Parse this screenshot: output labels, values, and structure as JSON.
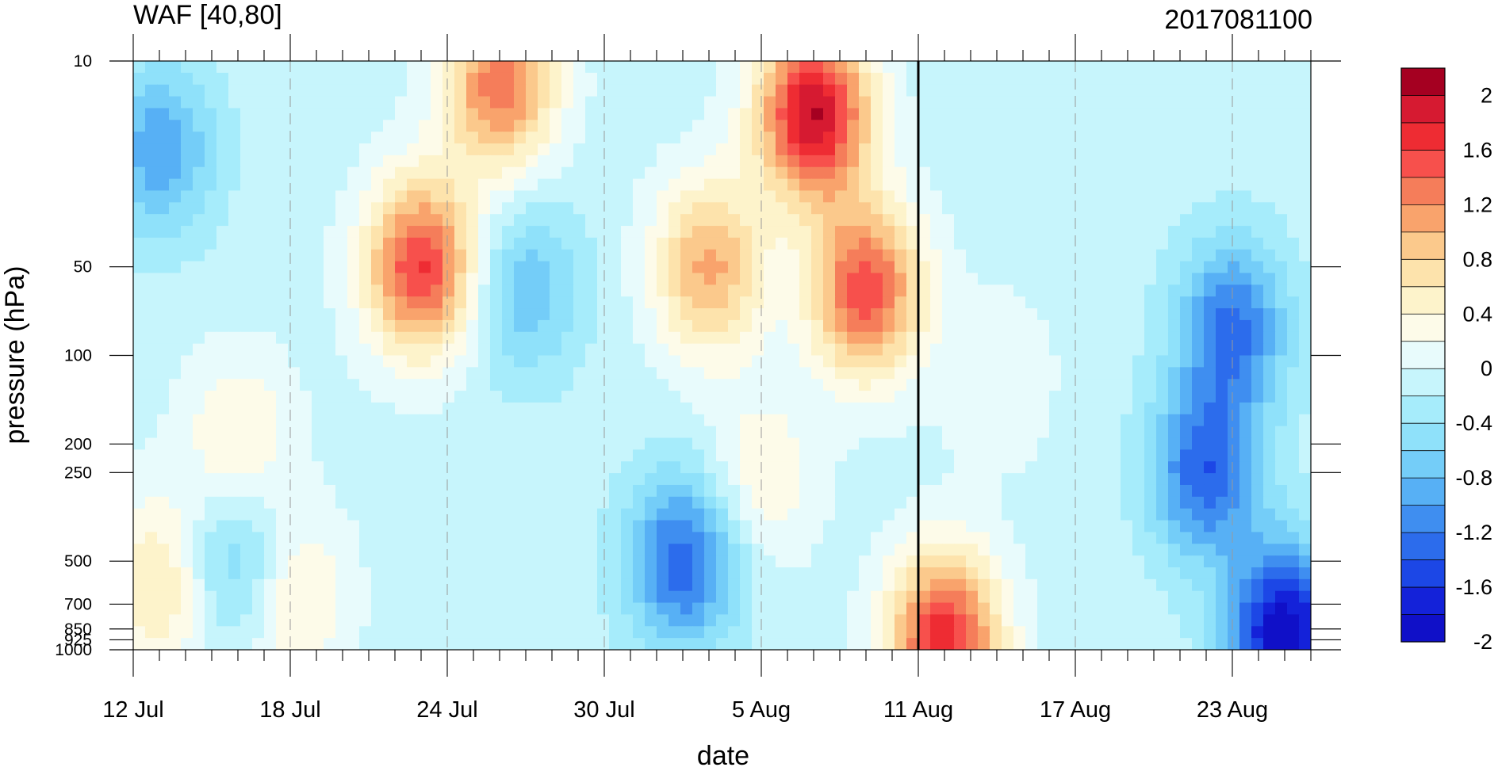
{
  "chart_data": {
    "type": "heatmap",
    "title": "WAF [40,80]",
    "right_title": "2017081100",
    "xlabel": "date",
    "ylabel": "pressure (hPa)",
    "x_tick_labels": [
      "12 Jul",
      "18 Jul",
      "24 Jul",
      "30 Jul",
      "5 Aug",
      "11 Aug",
      "17 Aug",
      "23 Aug"
    ],
    "x_tick_dates": [
      "2017-07-12",
      "2017-07-18",
      "2017-07-24",
      "2017-07-30",
      "2017-08-05",
      "2017-08-11",
      "2017-08-17",
      "2017-08-23"
    ],
    "x_range": [
      "2017-07-12",
      "2017-08-26"
    ],
    "y_scale": "log",
    "y_reversed": true,
    "y_tick_labels": [
      "10",
      "50",
      "100",
      "200",
      "250",
      "500",
      "700",
      "850",
      "925",
      "1000"
    ],
    "y_tick_values": [
      10,
      50,
      100,
      200,
      250,
      500,
      700,
      850,
      925,
      1000
    ],
    "y_range": [
      1000,
      10
    ],
    "reference_line_date": "2017-08-11",
    "grid_x": "dashed vertical lines at labeled dates",
    "colorbar": {
      "labels": [
        "2",
        "1.6",
        "1.2",
        "0.8",
        "0.4",
        "0",
        "-0.4",
        "-0.8",
        "-1.2",
        "-1.6",
        "-2"
      ],
      "colors": [
        "#a50021",
        "#d61a31",
        "#ee2c33",
        "#f7504c",
        "#f57d5a",
        "#f9a36c",
        "#fbc98c",
        "#fde3ac",
        "#fdf3cb",
        "#fdfbe9",
        "#e8fbfc",
        "#c7f5fc",
        "#a6ecfb",
        "#8fe1fa",
        "#74cdf8",
        "#57b0f5",
        "#3f8ef0",
        "#2c6cec",
        "#1c47e6",
        "#1422d9",
        "#1010c8"
      ]
    },
    "features": [
      {
        "date": "2017-08-07",
        "pressure": 15,
        "value": 2.2
      },
      {
        "date": "2017-08-09",
        "pressure": 60,
        "value": 1.7
      },
      {
        "date": "2017-07-23",
        "pressure": 50,
        "value": 1.8
      },
      {
        "date": "2017-07-26",
        "pressure": 12,
        "value": 1.5
      },
      {
        "date": "2017-08-03",
        "pressure": 50,
        "value": 1.2
      },
      {
        "date": "2017-07-16",
        "pressure": 200,
        "value": 0.6
      },
      {
        "date": "2017-07-13",
        "pressure": 600,
        "value": 0.8
      },
      {
        "date": "2017-07-18",
        "pressure": 650,
        "value": 0.7
      },
      {
        "date": "2017-08-05",
        "pressure": 260,
        "value": 0.5
      },
      {
        "date": "2017-08-12",
        "pressure": 920,
        "value": 1.9
      },
      {
        "date": "2017-08-14",
        "pressure": 120,
        "value": 0.3
      },
      {
        "date": "2017-07-13",
        "pressure": 20,
        "value": -0.9
      },
      {
        "date": "2017-07-16",
        "pressure": 500,
        "value": -0.8
      },
      {
        "date": "2017-07-27",
        "pressure": 60,
        "value": -0.7
      },
      {
        "date": "2017-08-02",
        "pressure": 500,
        "value": -1.3
      },
      {
        "date": "2017-08-23",
        "pressure": 80,
        "value": -1.2
      },
      {
        "date": "2017-08-22",
        "pressure": 250,
        "value": -1.3
      },
      {
        "date": "2017-08-25",
        "pressure": 900,
        "value": -2.0
      }
    ]
  }
}
